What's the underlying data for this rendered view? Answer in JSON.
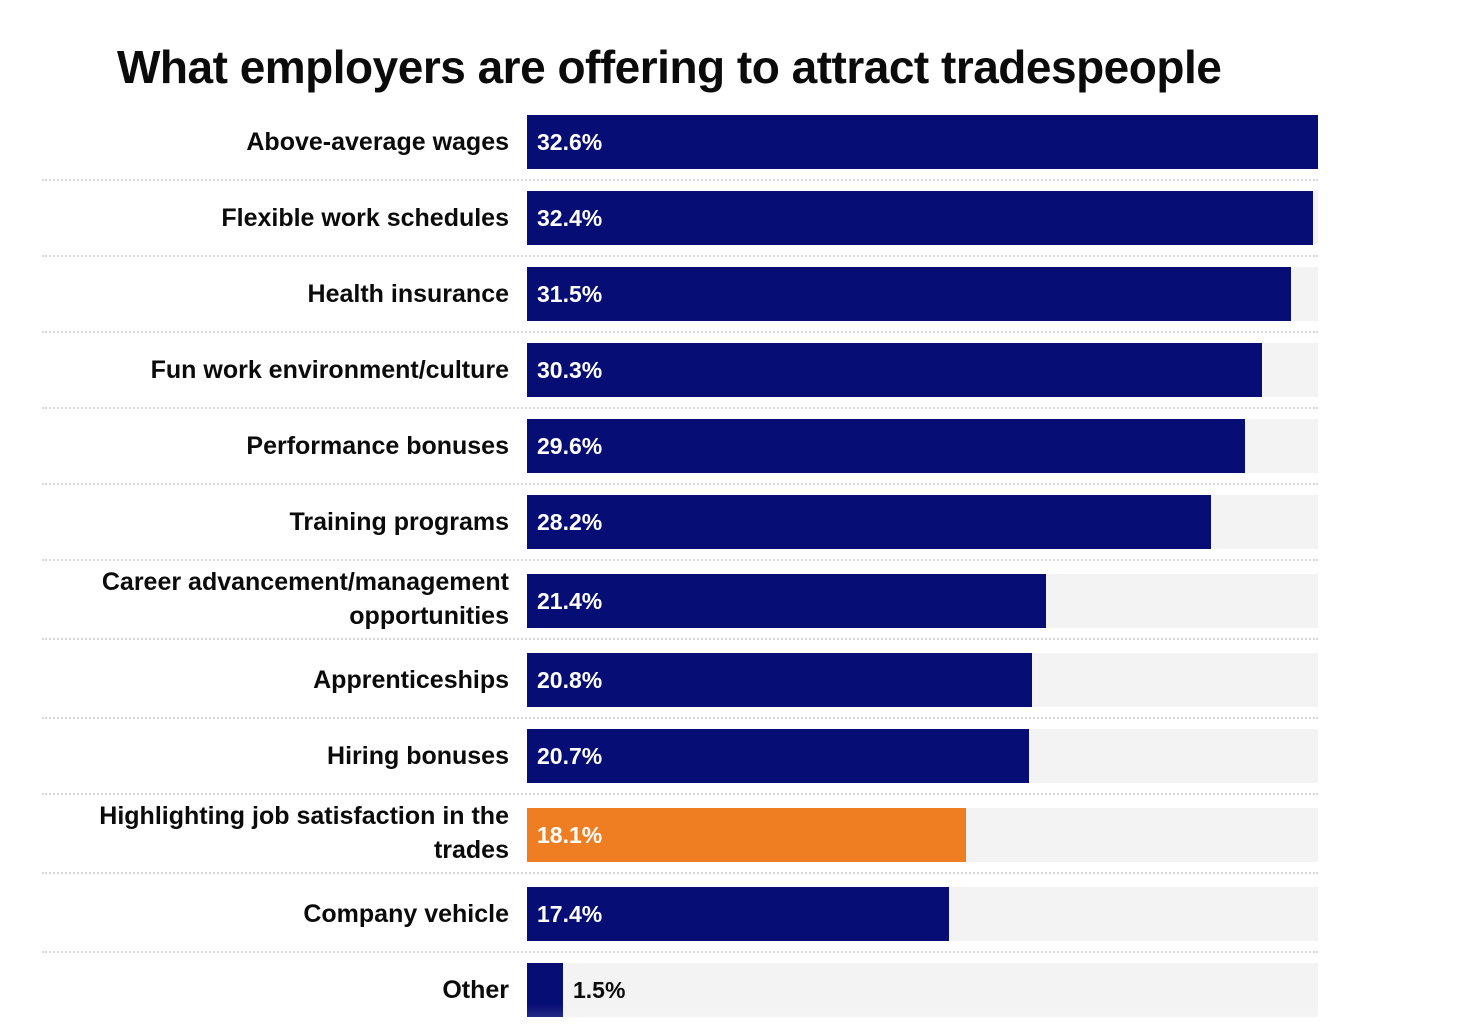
{
  "chart_data": {
    "type": "bar",
    "orientation": "horizontal",
    "title": "What employers are offering to attract tradespeople",
    "categories": [
      "Above-average wages",
      "Flexible work schedules",
      "Health insurance",
      "Fun work environment/culture",
      "Performance bonuses",
      "Training programs",
      "Career advancement/management opportunities",
      "Apprenticeships",
      "Hiring bonuses",
      "Highlighting job satisfaction in the trades",
      "Company vehicle",
      "Other"
    ],
    "values": [
      32.6,
      32.4,
      31.5,
      30.3,
      29.6,
      28.2,
      21.4,
      20.8,
      20.7,
      18.1,
      17.4,
      1.5
    ],
    "value_labels": [
      "32.6%",
      "32.4%",
      "31.5%",
      "30.3%",
      "29.6%",
      "28.2%",
      "21.4%",
      "20.8%",
      "20.7%",
      "18.1%",
      "17.4%",
      "1.5%"
    ],
    "highlighted_category": "Highlighting job satisfaction in the trades",
    "xlim": [
      0,
      32.6
    ],
    "grid": false,
    "colors": {
      "bar": "#060d74",
      "highlight": "#ef7d22",
      "track": "#f3f3f3",
      "divider": "#d8d8d8"
    }
  }
}
